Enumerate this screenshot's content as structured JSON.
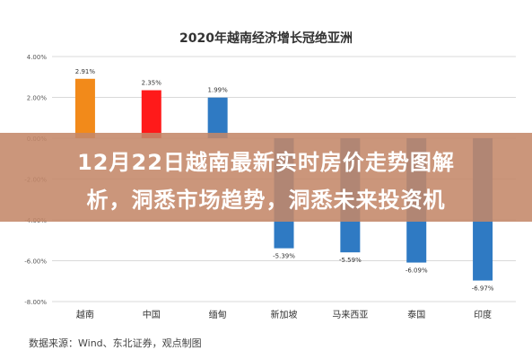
{
  "overlay": {
    "line1": "12月22日越南最新实时房价走势图解",
    "line2": "析，洞悉市场趋势，洞悉未来投资机"
  },
  "footer": {
    "source": "数据来源：Wind、东北证券，观点制图"
  },
  "chart_data": {
    "type": "bar",
    "title": "2020年越南经济增长冠绝亚洲",
    "categories": [
      "越南",
      "中国",
      "缅甸",
      "新加坡",
      "马来西亚",
      "泰国",
      "印度"
    ],
    "values": [
      2.91,
      2.35,
      1.99,
      -5.39,
      -5.59,
      -6.09,
      -6.97
    ],
    "data_labels": [
      "2.91%",
      "2.35%",
      "1.99%",
      "-5.39%",
      "-5.59%",
      "-6.09%",
      "-6.97%"
    ],
    "colors": [
      "#f28a1a",
      "#ff1a1a",
      "#2f7ac3",
      "#2f7ac3",
      "#2f7ac3",
      "#2f7ac3",
      "#2f7ac3"
    ],
    "ylim": [
      -8,
      4
    ],
    "yticks": [
      4,
      2,
      0,
      -2,
      -4,
      -6,
      -8
    ],
    "ytick_labels": [
      "4.00%",
      "2.00%",
      "0.00%",
      "-2.00%",
      "-4.00%",
      "-6.00%",
      "-8.00%"
    ],
    "grid": true,
    "xlabel": "",
    "ylabel": ""
  }
}
